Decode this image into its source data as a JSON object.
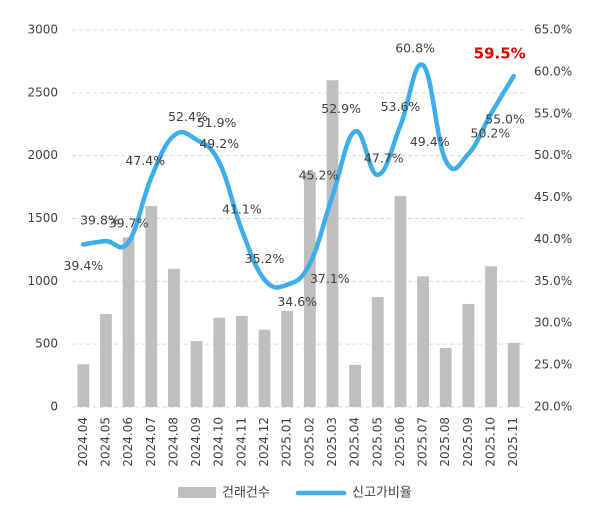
{
  "chart_data": {
    "type": "bar-line",
    "categories": [
      "2024.04",
      "2024.05",
      "2024.06",
      "2024.07",
      "2024.08",
      "2024.09",
      "2024.10",
      "2024.11",
      "2024.12",
      "2025.01",
      "2025.02",
      "2025.03",
      "2025.04",
      "2025.05",
      "2025.06",
      "2025.07",
      "2025.08",
      "2025.09",
      "2025.10",
      "2025.11"
    ],
    "series": [
      {
        "name": "건래건수",
        "type": "bar",
        "color": "#bfbfbf",
        "values": [
          340,
          740,
          1350,
          1600,
          1100,
          525,
          710,
          725,
          615,
          765,
          1870,
          2600,
          335,
          875,
          1680,
          1040,
          470,
          820,
          1120,
          510
        ]
      },
      {
        "name": "신고가비율",
        "type": "line",
        "axis": "y2",
        "color": "#3daee9",
        "values": [
          39.4,
          39.8,
          39.7,
          47.4,
          52.4,
          51.9,
          49.2,
          41.1,
          35.2,
          34.6,
          37.1,
          45.2,
          52.9,
          47.7,
          53.6,
          60.8,
          49.4,
          50.2,
          55.0,
          59.5
        ],
        "value_labels": [
          "39.4%",
          "39.8%",
          "39.7%",
          "47.4%",
          "52.4%",
          "51.9%",
          "49.2%",
          "41.1%",
          "35.2%",
          "34.6%",
          "37.1%",
          "45.2%",
          "52.9%",
          "47.7%",
          "53.6%",
          "60.8%",
          "49.4%",
          "50.2%",
          "55.0%",
          "59.5%"
        ]
      }
    ],
    "ylim": [
      0,
      3000
    ],
    "yticks": [
      0,
      500,
      1000,
      1500,
      2000,
      2500,
      3000
    ],
    "y2lim": [
      20,
      65
    ],
    "y2ticks": [
      {
        "value": 20,
        "label": "20.0%"
      },
      {
        "value": 25,
        "label": "25.0%"
      },
      {
        "value": 30,
        "label": "30.0%"
      },
      {
        "value": 35,
        "label": "35.0%"
      },
      {
        "value": 40,
        "label": "40.0%"
      },
      {
        "value": 45,
        "label": "45.0%"
      },
      {
        "value": 50,
        "label": "50.0%"
      },
      {
        "value": 55,
        "label": "55.0%"
      },
      {
        "value": 60,
        "label": "60.0%"
      },
      {
        "value": 65,
        "label": "65.0%"
      }
    ],
    "grid": true,
    "legend": "bottom"
  }
}
